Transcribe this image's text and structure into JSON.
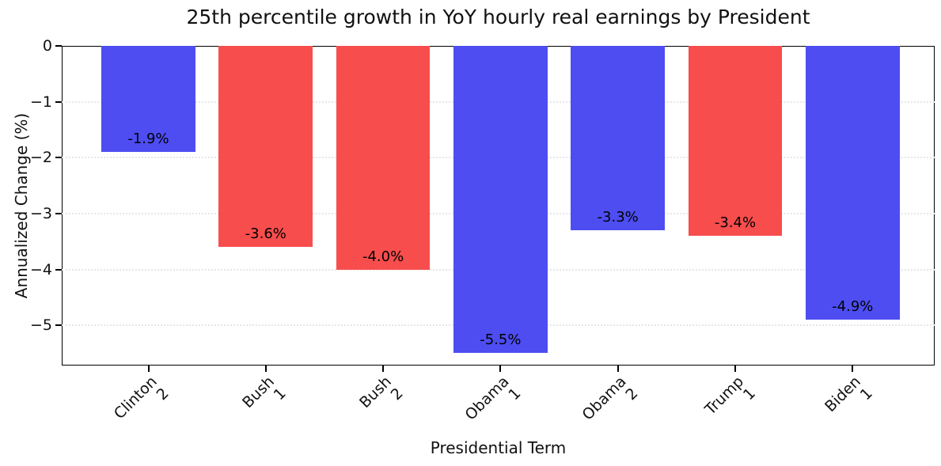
{
  "chart_data": {
    "type": "bar",
    "title": "25th percentile growth in YoY hourly real earnings by President",
    "xlabel": "Presidential Term",
    "ylabel": "Annualized Change (%)",
    "categories": [
      "Clinton\n2",
      "Bush\n1",
      "Bush\n2",
      "Obama\n1",
      "Obama\n2",
      "Trump\n1",
      "Biden\n1"
    ],
    "values": [
      -1.9,
      -3.6,
      -4.0,
      -5.5,
      -3.3,
      -3.4,
      -4.9
    ],
    "bar_labels": [
      "-1.9%",
      "-3.6%",
      "-4.0%",
      "-5.5%",
      "-3.3%",
      "-3.4%",
      "-4.9%"
    ],
    "bar_colors": [
      "#4D4DF2",
      "#F74D4D",
      "#F74D4D",
      "#4D4DF2",
      "#4D4DF2",
      "#F74D4D",
      "#4D4DF2"
    ],
    "colors": {
      "democrat_blue": "#4D4DF2",
      "republican_red": "#F74D4D"
    },
    "ylim": [
      -5.72,
      0
    ],
    "yticks": [
      0,
      -1,
      -2,
      -3,
      -4,
      -5
    ],
    "ytick_labels": [
      "0",
      "−1",
      "−2",
      "−3",
      "−4",
      "−5"
    ],
    "grid": "horizontal-dotted",
    "legend": "none",
    "bar_width_frac": 0.8
  }
}
